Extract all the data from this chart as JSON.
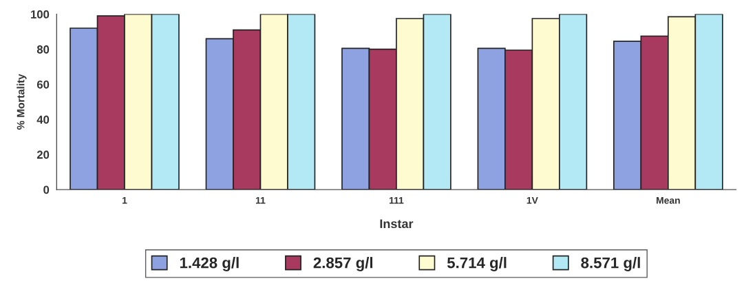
{
  "chart_data": {
    "type": "bar",
    "xlabel": "Instar",
    "ylabel": "% Mortality",
    "categories": [
      "1",
      "11",
      "111",
      "1V",
      "Mean"
    ],
    "series": [
      {
        "name": "1.428 g/l",
        "color": "#8ea2e2",
        "values": [
          92,
          86,
          80.5,
          80.5,
          84.5
        ]
      },
      {
        "name": "2.857 g/l",
        "color": "#a8395f",
        "values": [
          99,
          91,
          80,
          79.5,
          87.5
        ]
      },
      {
        "name": "5.714 g/l",
        "color": "#fffbd0",
        "values": [
          100,
          100,
          97.5,
          97.5,
          98.5
        ]
      },
      {
        "name": "8.571 g/l",
        "color": "#b3e8f5",
        "values": [
          100,
          100,
          100,
          100,
          100
        ]
      }
    ],
    "ylim": [
      0,
      100
    ],
    "yticks": [
      0,
      20,
      40,
      60,
      80,
      100
    ],
    "grid": false,
    "legend": "bottom"
  }
}
